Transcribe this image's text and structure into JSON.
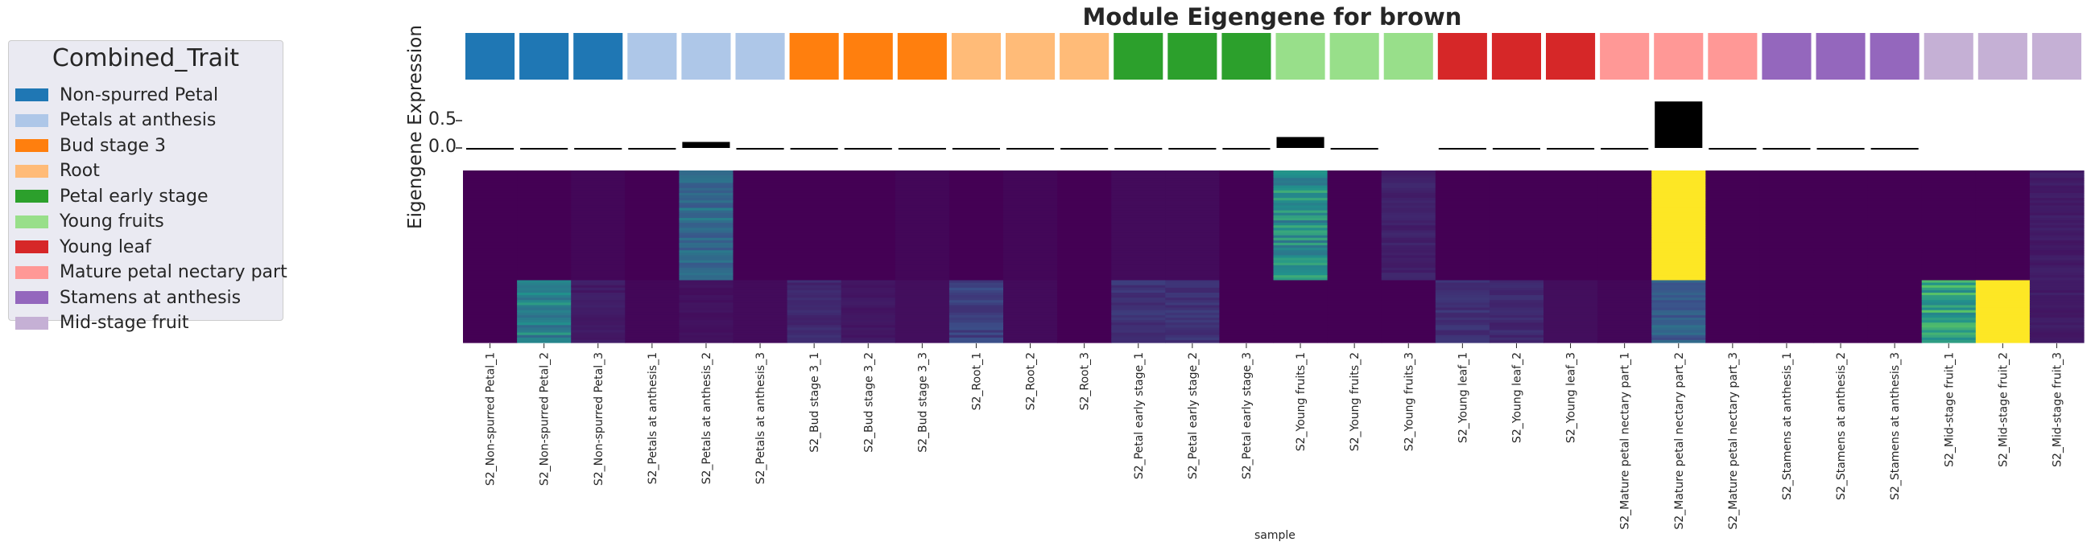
{
  "title": "Module Eigengene for brown",
  "ylabel": "Eigengene Expression",
  "xlabel": "sample",
  "legend": {
    "title": "Combined_Trait",
    "items": [
      {
        "label": "Non-spurred Petal",
        "color": "#1f77b4"
      },
      {
        "label": "Petals at anthesis",
        "color": "#aec7e8"
      },
      {
        "label": "Bud stage 3",
        "color": "#ff7f0e"
      },
      {
        "label": "Root",
        "color": "#ffbb78"
      },
      {
        "label": "Petal early stage",
        "color": "#2ca02c"
      },
      {
        "label": "Young fruits",
        "color": "#98df8a"
      },
      {
        "label": "Young leaf",
        "color": "#d62728"
      },
      {
        "label": "Mature petal nectary part",
        "color": "#ff9896"
      },
      {
        "label": "Stamens at anthesis",
        "color": "#9467bd"
      },
      {
        "label": "Mid-stage fruit",
        "color": "#c5b0d5"
      }
    ]
  },
  "yticks": [
    "0.5",
    "0.0"
  ],
  "chart_data": {
    "type": "bar",
    "title": "Module Eigengene for brown",
    "ylabel": "Eigengene Expression",
    "xlabel": "sample",
    "ylim": [
      -0.05,
      0.85
    ],
    "categories": [
      "S2_Non-spurred Petal_1",
      "S2_Non-spurred Petal_2",
      "S2_Non-spurred Petal_3",
      "S2_Petals at anthesis_1",
      "S2_Petals at anthesis_2",
      "S2_Petals at anthesis_3",
      "S2_Bud stage 3_1",
      "S2_Bud stage 3_2",
      "S2_Bud stage 3_3",
      "S2_Root_1",
      "S2_Root_2",
      "S2_Root_3",
      "S2_Petal early stage_1",
      "S2_Petal early stage_2",
      "S2_Petal early stage_3",
      "S2_Young fruits_1",
      "S2_Young fruits_2",
      "S2_Young fruits_3",
      "S2_Young leaf_1",
      "S2_Young leaf_2",
      "S2_Young leaf_3",
      "S2_Mature petal nectary part_1",
      "S2_Mature petal nectary part_2",
      "S2_Mature petal nectary part_3",
      "S2_Stamens at anthesis_1",
      "S2_Stamens at anthesis_2",
      "S2_Stamens at anthesis_3",
      "S2_Mid-stage fruit_1",
      "S2_Mid-stage fruit_2",
      "S2_Mid-stage fruit_3"
    ],
    "group_index": [
      0,
      0,
      0,
      1,
      1,
      1,
      2,
      2,
      2,
      3,
      3,
      3,
      4,
      4,
      4,
      5,
      5,
      5,
      6,
      6,
      6,
      7,
      7,
      7,
      8,
      8,
      8,
      9,
      9,
      9
    ],
    "values": [
      -0.03,
      -0.01,
      -0.03,
      -0.03,
      0.11,
      -0.03,
      -0.03,
      -0.03,
      -0.02,
      -0.02,
      -0.02,
      -0.03,
      -0.02,
      -0.02,
      -0.03,
      0.2,
      -0.03,
      null,
      -0.02,
      -0.02,
      -0.02,
      -0.03,
      0.85,
      -0.03,
      -0.03,
      -0.03,
      -0.03,
      null,
      null,
      null
    ],
    "heatmap": {
      "colormap": "viridis",
      "row_blocks": [
        {
          "rows": 44,
          "values": [
            0.0,
            0.0,
            0.02,
            0.0,
            0.35,
            0.0,
            0.0,
            0.0,
            0.02,
            0.0,
            0.02,
            0.0,
            0.03,
            0.03,
            0.0,
            0.5,
            0.0,
            0.1,
            0.0,
            0.0,
            0.0,
            0.0,
            1.0,
            0.0,
            0.0,
            0.0,
            0.0,
            0.0,
            0.0,
            0.08
          ]
        },
        {
          "rows": 25,
          "values": [
            0.0,
            0.45,
            0.08,
            0.02,
            0.05,
            0.03,
            0.12,
            0.07,
            0.04,
            0.2,
            0.03,
            0.0,
            0.15,
            0.15,
            0.0,
            0.0,
            0.0,
            0.0,
            0.15,
            0.12,
            0.04,
            0.02,
            0.3,
            0.0,
            0.0,
            0.0,
            0.0,
            0.6,
            1.0,
            0.08
          ]
        }
      ]
    }
  }
}
